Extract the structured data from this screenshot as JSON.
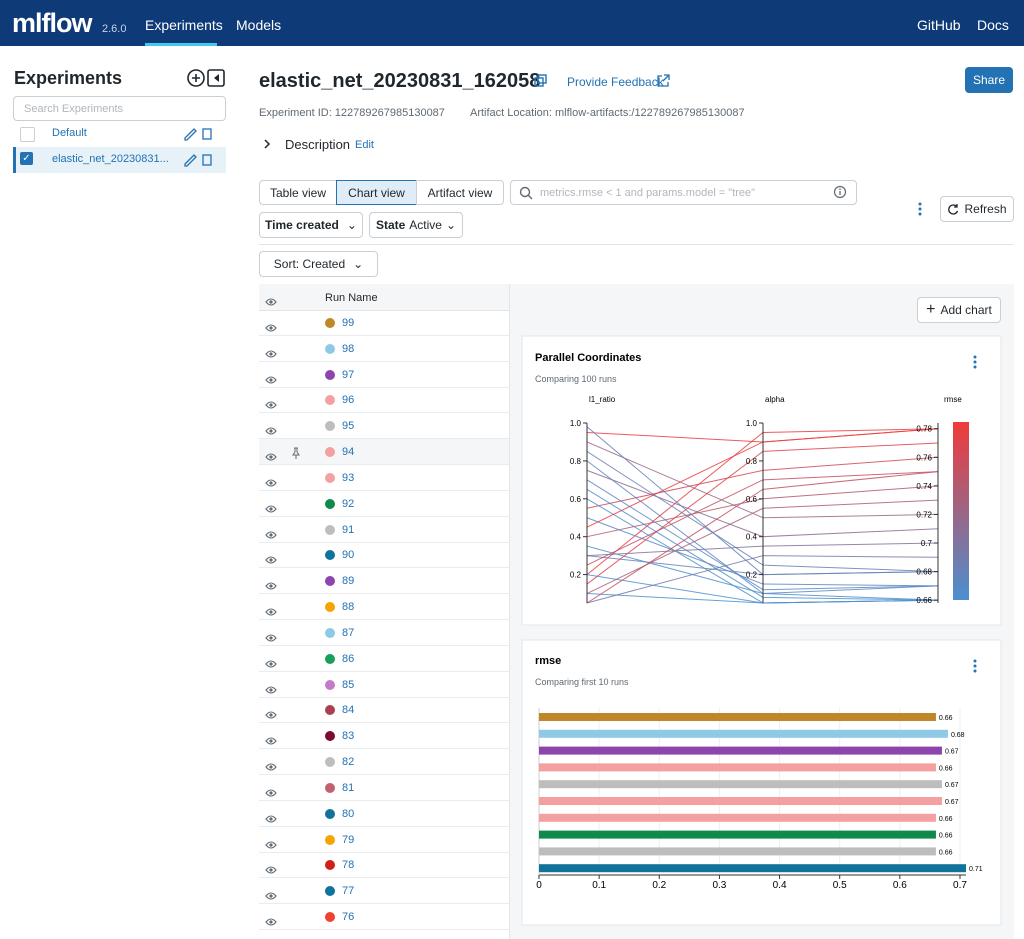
{
  "nav": {
    "logo": "mlflow",
    "version": "2.6.0",
    "tabs": [
      "Experiments",
      "Models"
    ],
    "links": [
      "GitHub",
      "Docs"
    ]
  },
  "sidebar": {
    "title": "Experiments",
    "search_placeholder": "Search Experiments",
    "experiments": [
      "Default",
      "elastic_net_20230831..."
    ]
  },
  "header": {
    "title": "elastic_net_20230831_162058",
    "feedback": "Provide Feedback",
    "share": "Share",
    "experiment_id": "Experiment ID: 122789267985130087",
    "artifact_location": "Artifact Location: mlflow-artifacts:/122789267985130087",
    "description": "Description",
    "edit": "Edit"
  },
  "toolbar": {
    "views": [
      "Table view",
      "Chart view",
      "Artifact view"
    ],
    "search_placeholder": "metrics.rmse < 1 and params.model = \"tree\"",
    "refresh": "Refresh",
    "time_created": "Time created",
    "state_label": "State",
    "state_value": "Active",
    "sort": "Sort: Created"
  },
  "runs": {
    "header": "Run Name",
    "names": [
      "99",
      "98",
      "97",
      "96",
      "95",
      "94",
      "93",
      "92",
      "91",
      "90",
      "89",
      "88",
      "87",
      "86",
      "85",
      "84",
      "83",
      "82",
      "81",
      "80",
      "79",
      "78",
      "77",
      "76"
    ],
    "colors": [
      "#c0862a",
      "#8ecae6",
      "#8e44ad",
      "#f4a0a0",
      "#bdbdbd",
      "#f4a0a0",
      "#f4a0a0",
      "#108a4c",
      "#bdbdbd",
      "#11729b",
      "#8e44ad",
      "#f5a400",
      "#8ecae6",
      "#16a05a",
      "#c27bc9",
      "#a9404f",
      "#7a0c2e",
      "#bdbdbd",
      "#c06070",
      "#11729b",
      "#f5a400",
      "#d0201a",
      "#11729b",
      "#f04030"
    ]
  },
  "charts": {
    "add_chart": "Add chart",
    "parallel": {
      "type": "parallel",
      "title": "Parallel Coordinates",
      "subtitle": "Comparing 100 runs",
      "axes": [
        "l1_ratio",
        "alpha",
        "rmse"
      ],
      "ylim": [
        0.05,
        1.0
      ],
      "yticks": [
        0.2,
        0.4,
        0.6,
        0.8,
        {
          "value": 1,
          "label": "1.0"
        }
      ],
      "rmse_lim": [
        0.658,
        0.784
      ],
      "rmse_ticks": [
        0.66,
        0.68,
        0.7,
        0.72,
        0.74,
        0.76,
        0.78
      ],
      "l1_ratio": [
        0.95,
        0.1,
        0.3,
        0.55,
        0.8,
        0.2,
        0.05,
        0.4,
        0.65,
        0.9,
        0.15,
        0.5,
        0.75,
        0.35,
        0.25,
        0.6,
        0.85,
        0.1,
        0.45,
        0.7,
        0.3,
        0.05,
        0.98,
        0.2
      ],
      "alpha": [
        0.9,
        0.05,
        0.2,
        0.75,
        0.1,
        0.95,
        0.3,
        0.6,
        0.08,
        0.5,
        0.85,
        0.15,
        0.4,
        0.1,
        0.7,
        0.05,
        0.25,
        0.55,
        0.9,
        0.12,
        0.35,
        0.65,
        0.2,
        0.05
      ],
      "rmse": [
        0.78,
        0.66,
        0.68,
        0.76,
        0.67,
        0.78,
        0.69,
        0.74,
        0.66,
        0.72,
        0.77,
        0.67,
        0.71,
        0.66,
        0.75,
        0.66,
        0.68,
        0.73,
        0.78,
        0.67,
        0.7,
        0.75,
        0.68,
        0.66
      ]
    },
    "bar": {
      "type": "bar",
      "title": "rmse",
      "subtitle": "Comparing first 10 runs",
      "values": [
        0.66,
        0.68,
        0.67,
        0.66,
        0.67,
        0.67,
        0.66,
        0.66,
        0.66,
        0.71
      ],
      "xlim": [
        0,
        0.71
      ],
      "xticks": [
        0,
        0.1,
        0.2,
        0.3,
        0.4,
        0.5,
        0.6,
        0.7
      ]
    }
  }
}
